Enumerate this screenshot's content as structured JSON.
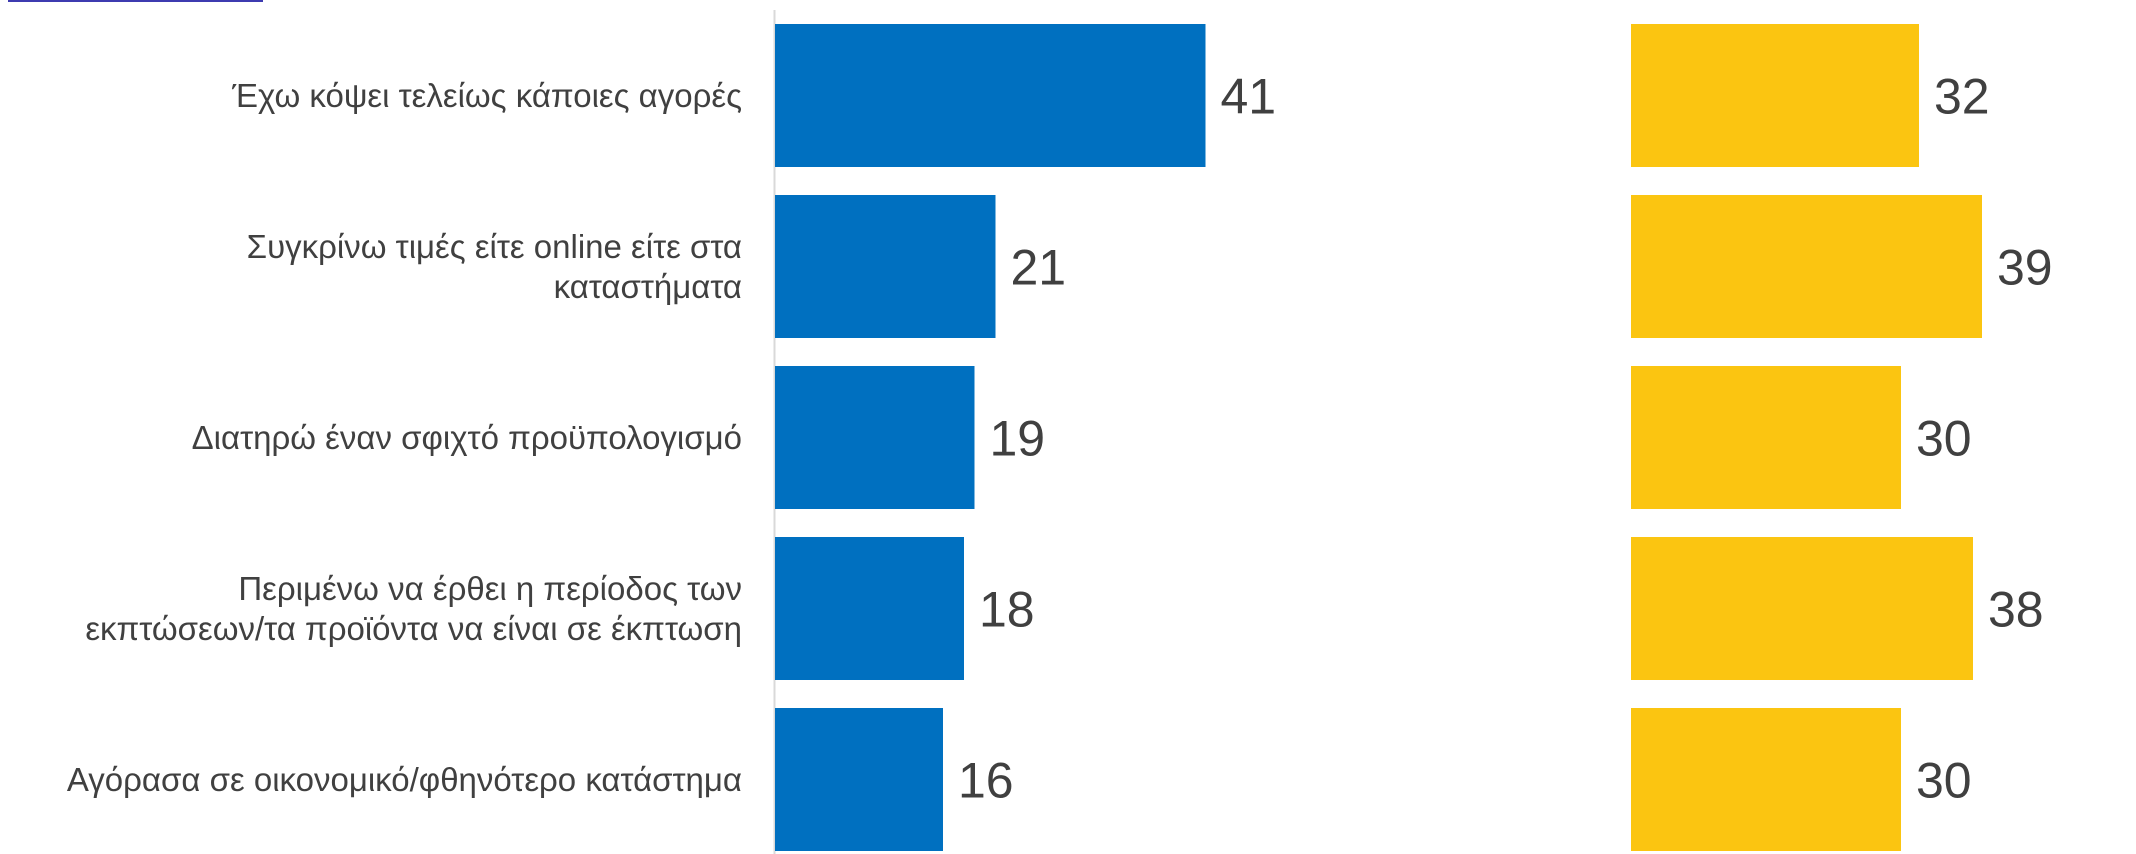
{
  "chart_data": {
    "type": "bar",
    "orientation": "horizontal",
    "categories": [
      [
        "Έχω κόψει τελείως κάποιες αγορές"
      ],
      [
        "Συγκρίνω τιμές είτε online είτε στα",
        "καταστήματα"
      ],
      [
        "Διατηρώ έναν σφιχτό προϋπολογισμό"
      ],
      [
        "Περιμένω να έρθει η περίοδος των",
        "εκπτώσεων/τα προϊόντα να είναι σε έκπτωση"
      ],
      [
        "Αγόρασα σε οικονομικό/φθηνότερο κατάστημα"
      ]
    ],
    "series": [
      {
        "values": [
          41,
          21,
          19,
          18,
          16
        ],
        "color": "#0070c0"
      },
      {
        "values": [
          32,
          39,
          30,
          38,
          30
        ],
        "color": "#fbc511"
      }
    ],
    "data_labels": true,
    "grid": false,
    "legend": "none",
    "label_color": "#404040",
    "axis_color": "#d9d9d9"
  }
}
